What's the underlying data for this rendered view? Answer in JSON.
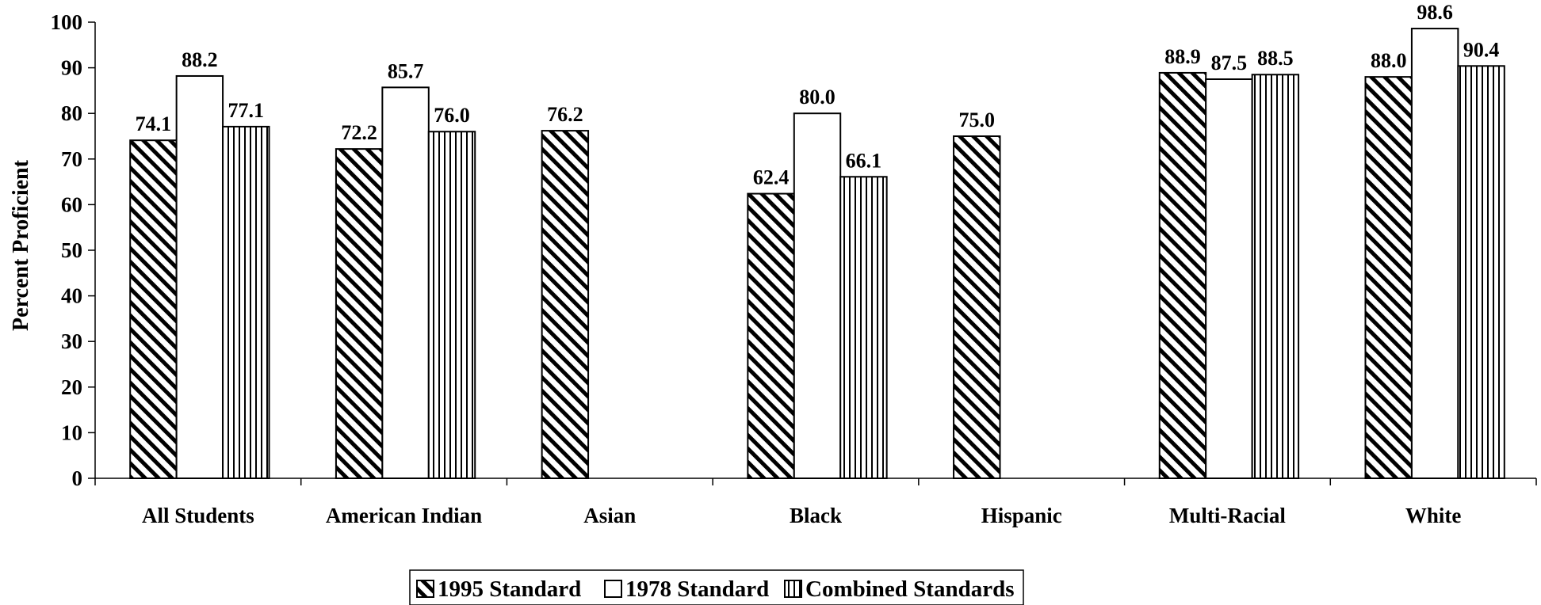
{
  "chart_data": {
    "type": "bar",
    "title": "",
    "xlabel": "",
    "ylabel": "Percent Proficient",
    "ylim": [
      0,
      100
    ],
    "yticks": [
      0,
      10,
      20,
      30,
      40,
      50,
      60,
      70,
      80,
      90,
      100
    ],
    "categories": [
      "All Students",
      "American Indian",
      "Asian",
      "Black",
      "Hispanic",
      "Multi-Racial",
      "White"
    ],
    "series": [
      {
        "name": "1995 Standard",
        "pattern": "diagonal-hatch",
        "values": [
          74.1,
          72.2,
          76.2,
          62.4,
          75.0,
          88.9,
          88.0
        ],
        "labels": [
          "74.1",
          "72.2",
          "76.2",
          "62.4",
          "75.0",
          "88.9",
          "88.0"
        ]
      },
      {
        "name": "1978 Standard",
        "pattern": "solid-white",
        "values": [
          88.2,
          85.7,
          null,
          80.0,
          null,
          87.5,
          98.6
        ],
        "labels": [
          "88.2",
          "85.7",
          "",
          "80.0",
          "",
          "87.5",
          "98.6"
        ]
      },
      {
        "name": "Combined Standards",
        "pattern": "vertical-hatch",
        "values": [
          77.1,
          76.0,
          null,
          66.1,
          null,
          88.5,
          90.4
        ],
        "labels": [
          "77.1",
          "76.0",
          "",
          "66.1",
          "",
          "88.5",
          "90.4"
        ]
      }
    ],
    "grid": false,
    "legend_position": "bottom-center",
    "colors": {
      "bar_stroke": "#000000",
      "bar_fill": "#ffffff",
      "hatch": "#000000"
    }
  }
}
